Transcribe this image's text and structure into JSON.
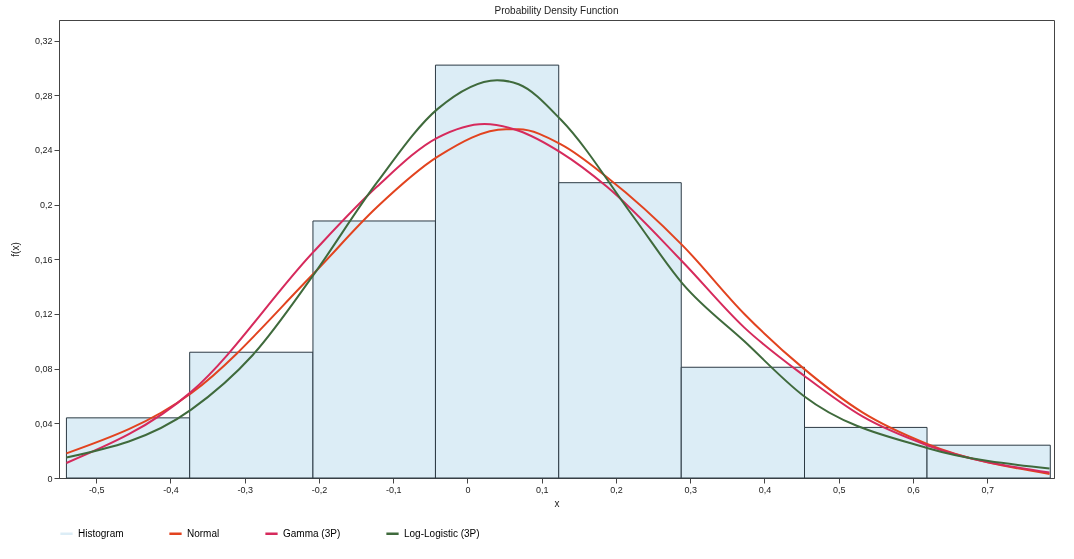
{
  "chart_data": {
    "type": "histogram",
    "title": "Probability Density Function",
    "xlabel": "x",
    "ylabel": "f(x)",
    "bins": [
      -0.54,
      -0.374,
      -0.208,
      -0.043,
      0.123,
      0.288,
      0.454,
      0.619,
      0.785
    ],
    "series": [
      {
        "name": "Histogram",
        "type": "histogram",
        "color": "#dcedf6",
        "values": [
          0.044,
          0.092,
          0.188,
          0.302,
          0.216,
          0.081,
          0.037,
          0.024
        ]
      },
      {
        "name": "Normal",
        "type": "line",
        "color": "#e2431f",
        "x": [
          -0.54,
          -0.372,
          -0.208,
          -0.122,
          -0.04,
          0.052,
          0.069,
          0.126,
          0.188,
          0.29,
          0.373,
          0.453,
          0.532,
          0.619,
          0.784
        ],
        "values": [
          0.018,
          0.062,
          0.149,
          0.198,
          0.235,
          0.255,
          0.255,
          0.244,
          0.22,
          0.17,
          0.12,
          0.08,
          0.048,
          0.025,
          0.003
        ]
      },
      {
        "name": "Gamma (3P)",
        "type": "line",
        "color": "#d62a5c",
        "x": [
          -0.54,
          -0.372,
          -0.208,
          -0.122,
          -0.04,
          0.023,
          0.069,
          0.126,
          0.188,
          0.29,
          0.373,
          0.453,
          0.532,
          0.619,
          0.784
        ],
        "values": [
          0.011,
          0.063,
          0.165,
          0.213,
          0.249,
          0.259,
          0.254,
          0.238,
          0.213,
          0.158,
          0.11,
          0.075,
          0.045,
          0.024,
          0.004
        ]
      },
      {
        "name": "Log-Logistic (3P)",
        "type": "line",
        "color": "#3f6a3c",
        "x": [
          -0.54,
          -0.372,
          -0.289,
          -0.208,
          -0.122,
          -0.04,
          0.04,
          0.069,
          0.126,
          0.225,
          0.29,
          0.373,
          0.453,
          0.619,
          0.784
        ],
        "values": [
          0.015,
          0.05,
          0.09,
          0.148,
          0.216,
          0.27,
          0.291,
          0.288,
          0.262,
          0.19,
          0.142,
          0.1,
          0.06,
          0.022,
          0.007
        ]
      }
    ],
    "xlim": [
      -0.55,
      0.79
    ],
    "xticks": [
      {
        "value": -0.5,
        "label": "-0,5"
      },
      {
        "value": -0.4,
        "label": "-0,4"
      },
      {
        "value": -0.3,
        "label": "-0,3"
      },
      {
        "value": -0.2,
        "label": "-0,2"
      },
      {
        "value": -0.1,
        "label": "-0,1"
      },
      0,
      {
        "value": 0.1,
        "label": "0,1"
      },
      {
        "value": 0.2,
        "label": "0,2"
      },
      {
        "value": 0.3,
        "label": "0,3"
      },
      {
        "value": 0.4,
        "label": "0,4"
      },
      {
        "value": 0.5,
        "label": "0,5"
      },
      {
        "value": 0.6,
        "label": "0,6"
      },
      {
        "value": 0.7,
        "label": "0,7"
      }
    ],
    "ylim": [
      0,
      0.335
    ],
    "yticks": [
      0,
      {
        "value": 0.04,
        "label": "0,04"
      },
      {
        "value": 0.08,
        "label": "0,08"
      },
      {
        "value": 0.12,
        "label": "0,12"
      },
      {
        "value": 0.16,
        "label": "0,16"
      },
      {
        "value": 0.2,
        "label": "0,2"
      },
      {
        "value": 0.24,
        "label": "0,24"
      },
      {
        "value": 0.28,
        "label": "0,28"
      },
      {
        "value": 0.32,
        "label": "0,32"
      }
    ],
    "legend": "bottom"
  }
}
